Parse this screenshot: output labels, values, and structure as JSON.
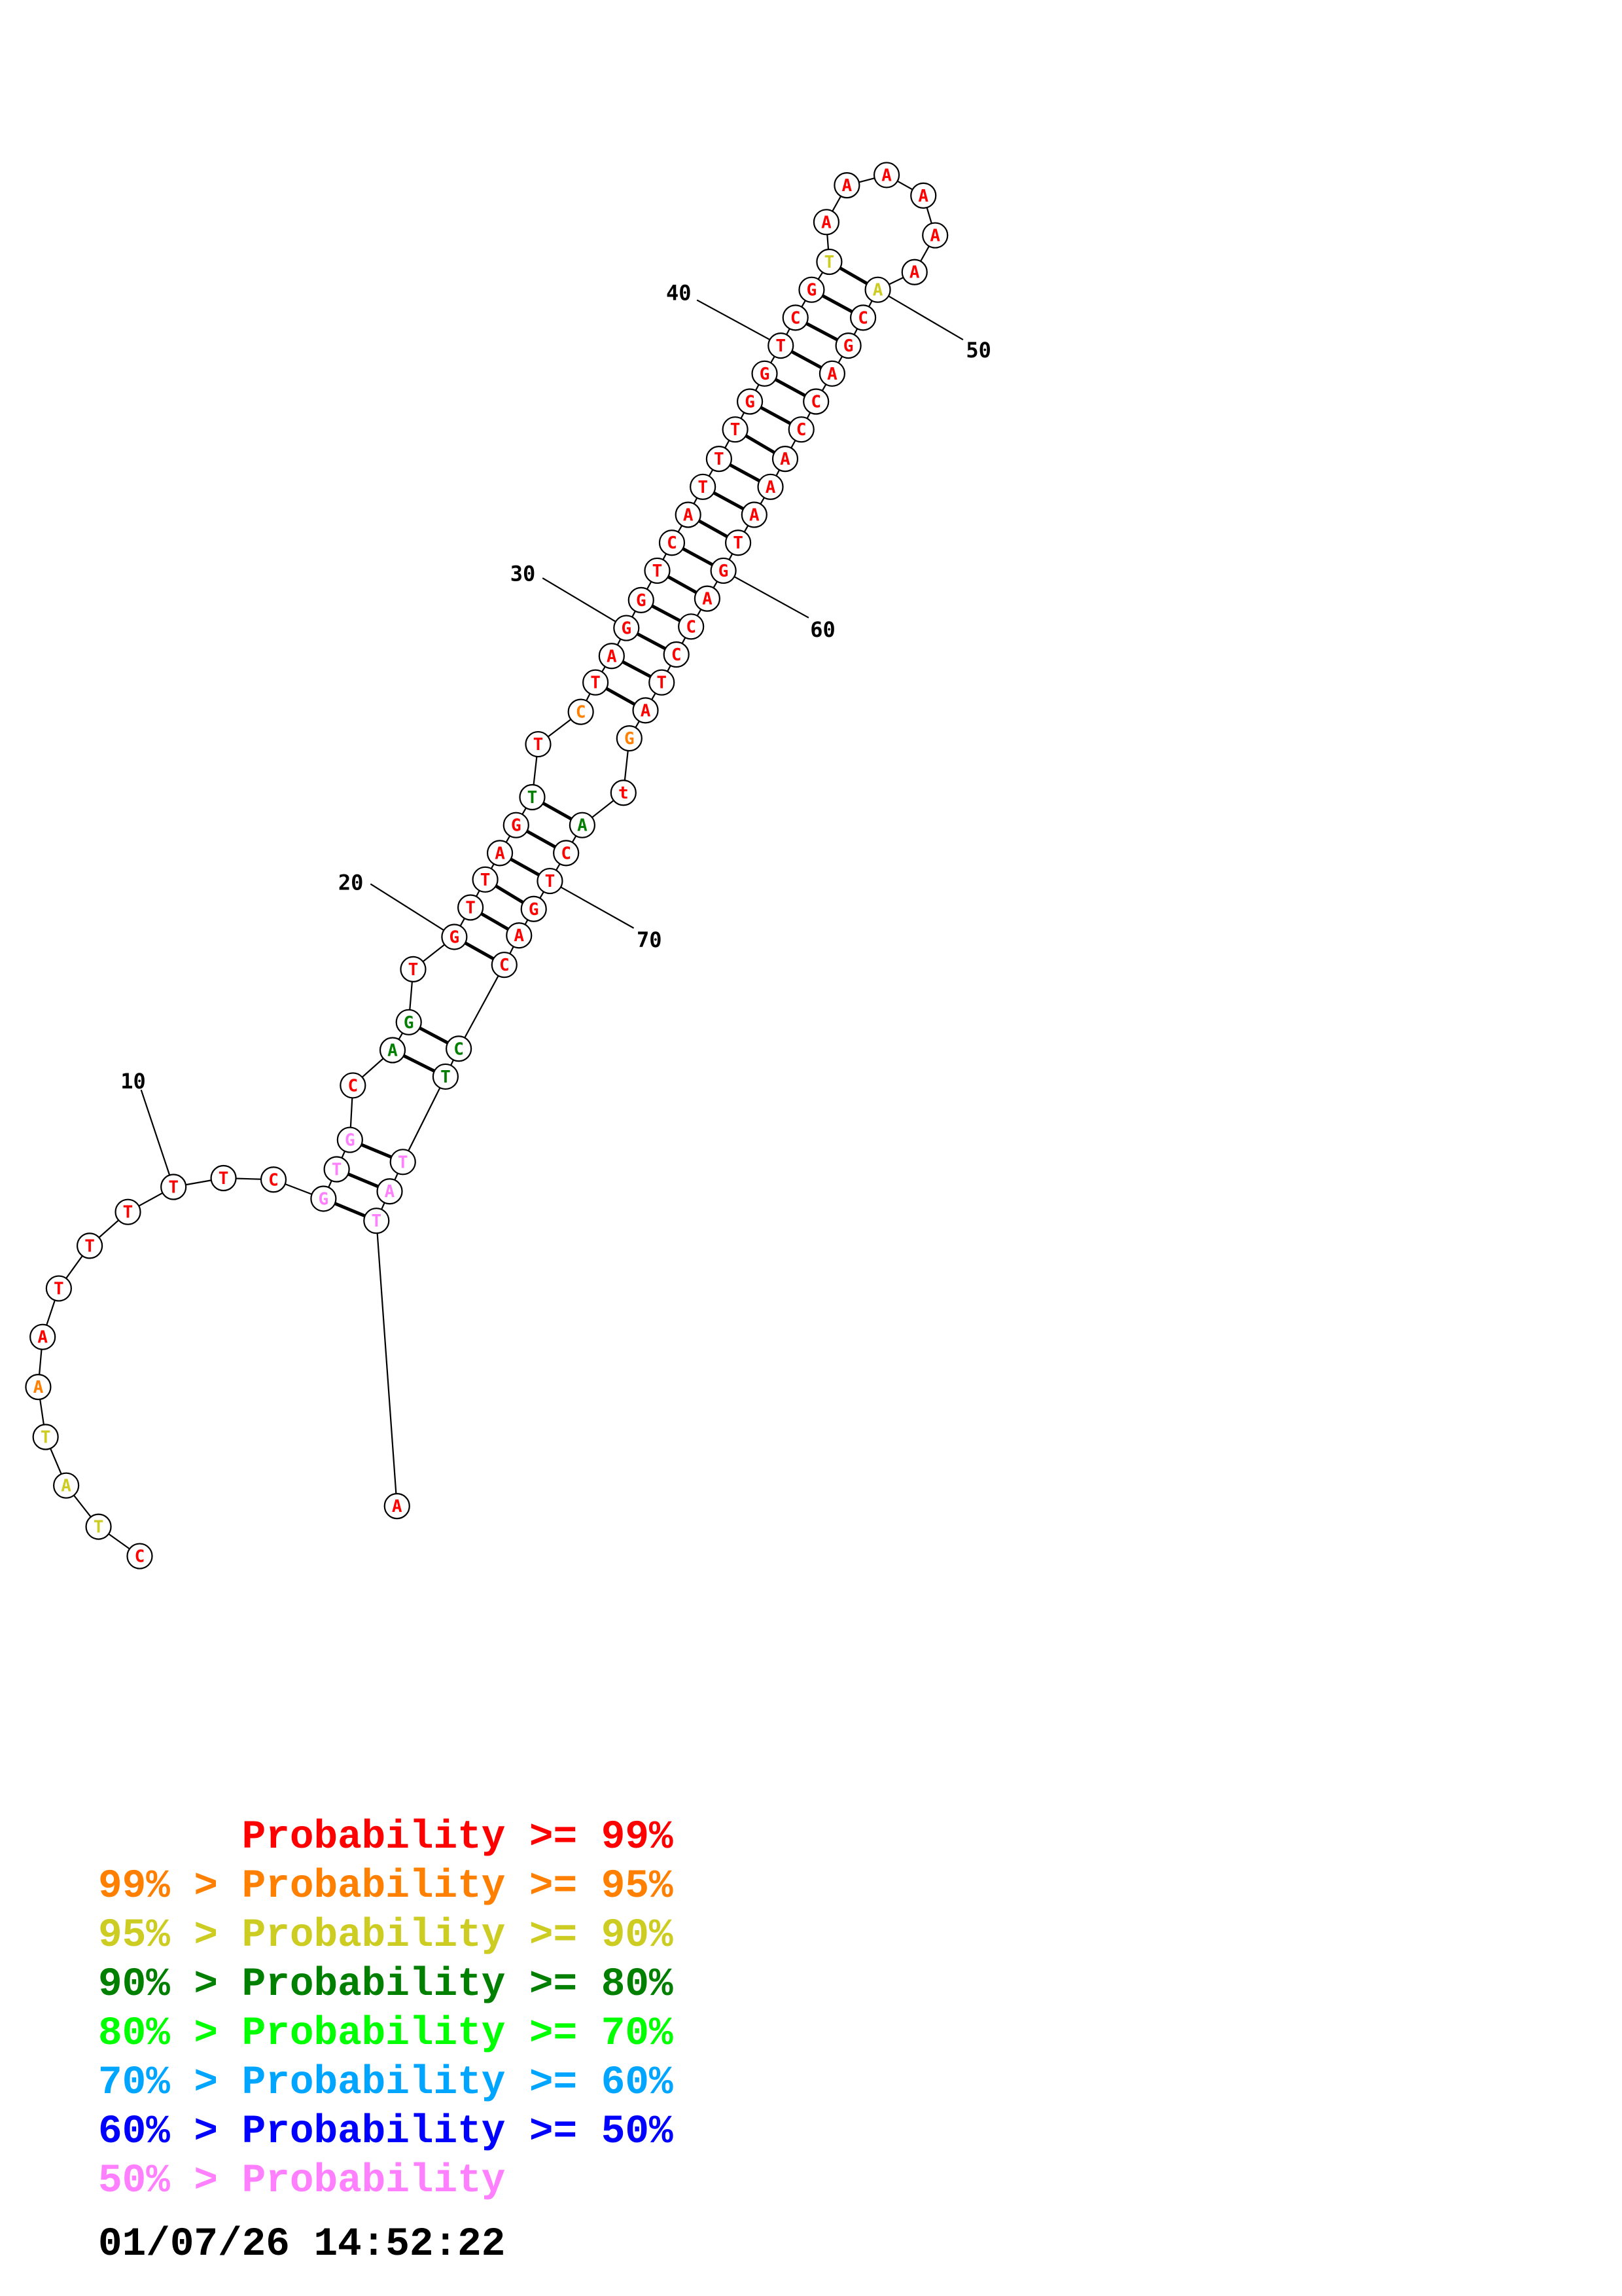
{
  "colors": {
    "p99": "#ff0000",
    "p95": "#ff7f00",
    "p90": "#cccc22",
    "p80": "#007f00",
    "p70": "#00ff00",
    "p60": "#00a5ff",
    "p50": "#0000ff",
    "plow": "#ff80ff"
  },
  "structure": {
    "nucleotides": [
      {
        "n": 1,
        "base": "C",
        "prob": "p99"
      },
      {
        "n": 2,
        "base": "T",
        "prob": "p90"
      },
      {
        "n": 3,
        "base": "A",
        "prob": "p90"
      },
      {
        "n": 4,
        "base": "T",
        "prob": "p90"
      },
      {
        "n": 5,
        "base": "A",
        "prob": "p95"
      },
      {
        "n": 6,
        "base": "A",
        "prob": "p99"
      },
      {
        "n": 7,
        "base": "T",
        "prob": "p99"
      },
      {
        "n": 8,
        "base": "T",
        "prob": "p99"
      },
      {
        "n": 9,
        "base": "T",
        "prob": "p99"
      },
      {
        "n": 10,
        "base": "T",
        "prob": "p99"
      },
      {
        "n": 11,
        "base": "T",
        "prob": "p99"
      },
      {
        "n": 12,
        "base": "C",
        "prob": "p99"
      },
      {
        "n": 13,
        "base": "G",
        "prob": "plow"
      },
      {
        "n": 14,
        "base": "T",
        "prob": "plow"
      },
      {
        "n": 15,
        "base": "G",
        "prob": "plow"
      },
      {
        "n": 16,
        "base": "C",
        "prob": "p99"
      },
      {
        "n": 17,
        "base": "A",
        "prob": "p80"
      },
      {
        "n": 18,
        "base": "G",
        "prob": "p80"
      },
      {
        "n": 19,
        "base": "T",
        "prob": "p99"
      },
      {
        "n": 20,
        "base": "G",
        "prob": "p99"
      },
      {
        "n": 21,
        "base": "T",
        "prob": "p99"
      },
      {
        "n": 22,
        "base": "T",
        "prob": "p99"
      },
      {
        "n": 23,
        "base": "A",
        "prob": "p99"
      },
      {
        "n": 24,
        "base": "G",
        "prob": "p99"
      },
      {
        "n": 25,
        "base": "T",
        "prob": "p80"
      },
      {
        "n": 26,
        "base": "T",
        "prob": "p99"
      },
      {
        "n": 27,
        "base": "C",
        "prob": "p95"
      },
      {
        "n": 28,
        "base": "T",
        "prob": "p99"
      },
      {
        "n": 29,
        "base": "A",
        "prob": "p99"
      },
      {
        "n": 30,
        "base": "G",
        "prob": "p99"
      },
      {
        "n": 31,
        "base": "G",
        "prob": "p99"
      },
      {
        "n": 32,
        "base": "T",
        "prob": "p99"
      },
      {
        "n": 33,
        "base": "C",
        "prob": "p99"
      },
      {
        "n": 34,
        "base": "A",
        "prob": "p99"
      },
      {
        "n": 35,
        "base": "T",
        "prob": "p99"
      },
      {
        "n": 36,
        "base": "T",
        "prob": "p99"
      },
      {
        "n": 37,
        "base": "T",
        "prob": "p99"
      },
      {
        "n": 38,
        "base": "G",
        "prob": "p99"
      },
      {
        "n": 39,
        "base": "G",
        "prob": "p99"
      },
      {
        "n": 40,
        "base": "T",
        "prob": "p99"
      },
      {
        "n": 41,
        "base": "C",
        "prob": "p99"
      },
      {
        "n": 42,
        "base": "G",
        "prob": "p99"
      },
      {
        "n": 43,
        "base": "T",
        "prob": "p90"
      },
      {
        "n": 44,
        "base": "A",
        "prob": "p99"
      },
      {
        "n": 45,
        "base": "A",
        "prob": "p99"
      },
      {
        "n": 46,
        "base": "A",
        "prob": "p99"
      },
      {
        "n": 47,
        "base": "A",
        "prob": "p99"
      },
      {
        "n": 48,
        "base": "A",
        "prob": "p99"
      },
      {
        "n": 49,
        "base": "A",
        "prob": "p99"
      },
      {
        "n": 50,
        "base": "A",
        "prob": "p90"
      },
      {
        "n": 51,
        "base": "C",
        "prob": "p99"
      },
      {
        "n": 52,
        "base": "G",
        "prob": "p99"
      },
      {
        "n": 53,
        "base": "A",
        "prob": "p99"
      },
      {
        "n": 54,
        "base": "C",
        "prob": "p99"
      },
      {
        "n": 55,
        "base": "C",
        "prob": "p99"
      },
      {
        "n": 56,
        "base": "A",
        "prob": "p99"
      },
      {
        "n": 57,
        "base": "A",
        "prob": "p99"
      },
      {
        "n": 58,
        "base": "A",
        "prob": "p99"
      },
      {
        "n": 59,
        "base": "T",
        "prob": "p99"
      },
      {
        "n": 60,
        "base": "G",
        "prob": "p99"
      },
      {
        "n": 61,
        "base": "A",
        "prob": "p99"
      },
      {
        "n": 62,
        "base": "C",
        "prob": "p99"
      },
      {
        "n": 63,
        "base": "C",
        "prob": "p99"
      },
      {
        "n": 64,
        "base": "T",
        "prob": "p99"
      },
      {
        "n": 65,
        "base": "A",
        "prob": "p99"
      },
      {
        "n": 66,
        "base": "G",
        "prob": "p95"
      },
      {
        "n": 67,
        "base": "t",
        "prob": "p99"
      },
      {
        "n": 68,
        "base": "A",
        "prob": "p80"
      },
      {
        "n": 69,
        "base": "C",
        "prob": "p99"
      },
      {
        "n": 70,
        "base": "T",
        "prob": "p99"
      },
      {
        "n": 71,
        "base": "G",
        "prob": "p99"
      },
      {
        "n": 72,
        "base": "A",
        "prob": "p99"
      },
      {
        "n": 73,
        "base": "C",
        "prob": "p99"
      },
      {
        "n": 74,
        "base": "C",
        "prob": "p80"
      },
      {
        "n": 75,
        "base": "T",
        "prob": "p80"
      },
      {
        "n": 76,
        "base": "T",
        "prob": "plow"
      },
      {
        "n": 77,
        "base": "A",
        "prob": "plow"
      },
      {
        "n": 78,
        "base": "T",
        "prob": "plow"
      },
      {
        "n": 79,
        "base": "A",
        "prob": "p99"
      }
    ],
    "pairs": [
      [
        13,
        78
      ],
      [
        14,
        77
      ],
      [
        15,
        76
      ],
      [
        17,
        75
      ],
      [
        18,
        74
      ],
      [
        20,
        73
      ],
      [
        21,
        72
      ],
      [
        22,
        71
      ],
      [
        23,
        70
      ],
      [
        24,
        69
      ],
      [
        25,
        68
      ],
      [
        28,
        65
      ],
      [
        29,
        64
      ],
      [
        30,
        63
      ],
      [
        31,
        62
      ],
      [
        32,
        61
      ],
      [
        33,
        60
      ],
      [
        34,
        59
      ],
      [
        35,
        58
      ],
      [
        36,
        57
      ],
      [
        37,
        56
      ],
      [
        38,
        55
      ],
      [
        39,
        54
      ],
      [
        40,
        53
      ],
      [
        41,
        52
      ],
      [
        42,
        51
      ],
      [
        43,
        50
      ]
    ],
    "position_labels": [
      "10",
      "20",
      "30",
      "40",
      "50",
      "60",
      "70"
    ]
  },
  "legend": [
    {
      "prefix": "",
      "prefix_op": "",
      "label": "Probability",
      "op": ">=",
      "value": "99%",
      "color": "p99"
    },
    {
      "prefix": "99%",
      "prefix_op": ">",
      "label": "Probability",
      "op": ">=",
      "value": "95%",
      "color": "p95"
    },
    {
      "prefix": "95%",
      "prefix_op": ">",
      "label": "Probability",
      "op": ">=",
      "value": "90%",
      "color": "p90"
    },
    {
      "prefix": "90%",
      "prefix_op": ">",
      "label": "Probability",
      "op": ">=",
      "value": "80%",
      "color": "p80"
    },
    {
      "prefix": "80%",
      "prefix_op": ">",
      "label": "Probability",
      "op": ">=",
      "value": "70%",
      "color": "p70"
    },
    {
      "prefix": "70%",
      "prefix_op": ">",
      "label": "Probability",
      "op": ">=",
      "value": "60%",
      "color": "p60"
    },
    {
      "prefix": "60%",
      "prefix_op": ">",
      "label": "Probability",
      "op": ">=",
      "value": "50%",
      "color": "p50"
    },
    {
      "prefix": "50%",
      "prefix_op": ">",
      "label": "Probability",
      "op": "",
      "value": "",
      "color": "plow"
    }
  ],
  "timestamp": "01/07/26 14:52:22"
}
